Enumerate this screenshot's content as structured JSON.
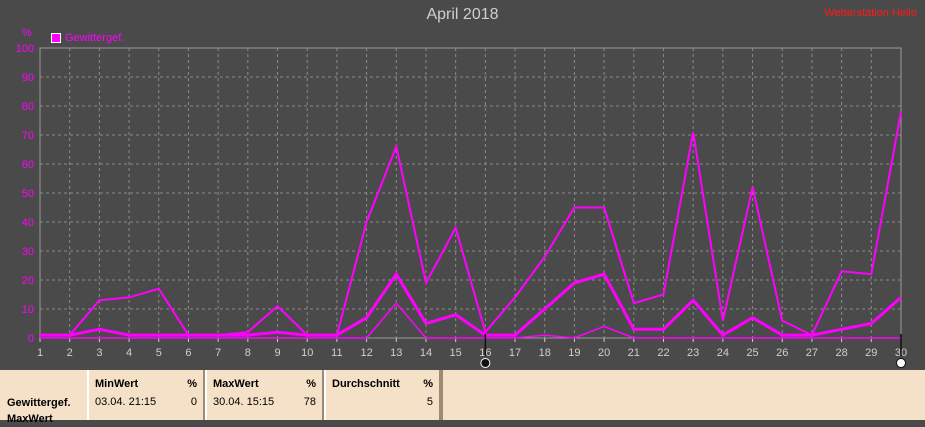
{
  "header": {
    "title": "April 2018",
    "corner_link": "Wetterstation Heilo"
  },
  "chart_data": {
    "type": "line",
    "title": "April 2018",
    "unit": "%",
    "ylim": [
      0,
      100
    ],
    "yticks": [
      0,
      10,
      20,
      30,
      40,
      50,
      60,
      70,
      80,
      90,
      100
    ],
    "x": [
      1,
      2,
      3,
      4,
      5,
      6,
      7,
      8,
      9,
      10,
      11,
      12,
      13,
      14,
      15,
      16,
      17,
      18,
      19,
      20,
      21,
      22,
      23,
      24,
      25,
      26,
      27,
      28,
      29,
      30
    ],
    "grid": true,
    "legend_position": "top-left",
    "legend": [
      "Gewittergef."
    ],
    "series": [
      {
        "role": "max",
        "values": [
          1,
          1,
          13,
          14,
          17,
          1,
          1,
          2,
          11,
          1,
          1,
          40,
          66,
          19,
          38,
          2,
          14,
          28,
          45,
          45,
          12,
          15,
          71,
          6,
          52,
          6,
          1,
          23,
          22,
          78
        ]
      },
      {
        "role": "avg",
        "values": [
          1,
          1,
          3,
          1,
          1,
          1,
          1,
          1,
          2,
          1,
          1,
          7,
          22,
          5,
          8,
          1,
          1,
          10,
          19,
          22,
          3,
          3,
          13,
          1,
          7,
          1,
          1,
          3,
          5,
          14
        ]
      },
      {
        "role": "min",
        "values": [
          0,
          0,
          0,
          0,
          0,
          0,
          0,
          0,
          0,
          0,
          0,
          0,
          12,
          0,
          0,
          0,
          0,
          1,
          0,
          4,
          0,
          0,
          0,
          0,
          0,
          0,
          0,
          0,
          0,
          0
        ]
      }
    ],
    "markers": [
      {
        "x": 16,
        "style": "dark"
      },
      {
        "x": 30,
        "style": "light"
      }
    ],
    "colors": {
      "series": "#ff00ff",
      "background": "#4a4a4a",
      "grid": "#8a8a8a",
      "axis_text": "#cfcfcf"
    }
  },
  "stats": {
    "row_label_1": "Gewittergef.",
    "row_label_2": "MaxWert",
    "blocks": [
      {
        "heading": "MinWert",
        "unit": "%",
        "value_text": "03.04.  21:15",
        "value_num": "0"
      },
      {
        "heading": "MaxWert",
        "unit": "%",
        "value_text": "30.04.  15:15",
        "value_num": "78"
      },
      {
        "heading": "Durchschnitt",
        "unit": "%",
        "value_text": "",
        "value_num": "5"
      }
    ]
  }
}
